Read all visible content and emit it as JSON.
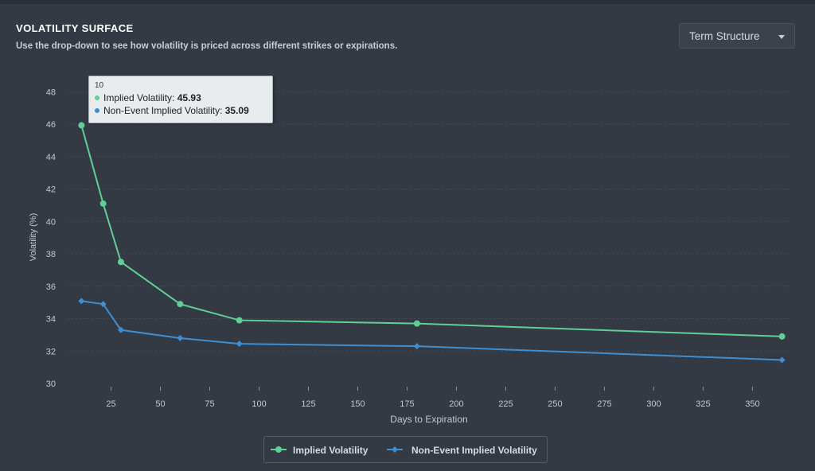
{
  "header": {
    "title": "VOLATILITY SURFACE",
    "subtitle": "Use the drop-down to see how volatility is priced across different strikes or expirations."
  },
  "dropdown": {
    "selected": "Term Structure"
  },
  "colors": {
    "iv": "#5fcf96",
    "nonevent": "#3f8ed1",
    "background": "#343a43"
  },
  "tooltip": {
    "x": "10",
    "rows": [
      {
        "label": "Implied Volatility:",
        "value": "45.93"
      },
      {
        "label": "Non-Event Implied Volatility:",
        "value": "35.09"
      }
    ]
  },
  "chart_data": {
    "type": "line",
    "xlabel": "Days to Expiration",
    "ylabel": "Volatility (%)",
    "xlim": [
      3,
      370
    ],
    "ylim": [
      30,
      49
    ],
    "xticks": [
      25,
      50,
      75,
      100,
      125,
      150,
      175,
      200,
      225,
      250,
      275,
      300,
      325,
      350
    ],
    "yticks": [
      30,
      32,
      34,
      36,
      38,
      40,
      42,
      44,
      46,
      48
    ],
    "grid": true,
    "legend": "bottom-center",
    "series": [
      {
        "name": "Implied Volatility",
        "marker": "circle",
        "points": [
          [
            10,
            45.93
          ],
          [
            21,
            41.1
          ],
          [
            30,
            37.5
          ],
          [
            60,
            34.9
          ],
          [
            90,
            33.9
          ],
          [
            180,
            33.7
          ],
          [
            365,
            32.9
          ]
        ]
      },
      {
        "name": "Non-Event Implied Volatility",
        "marker": "diamond",
        "points": [
          [
            10,
            35.09
          ],
          [
            21,
            34.9
          ],
          [
            30,
            33.3
          ],
          [
            60,
            32.8
          ],
          [
            90,
            32.45
          ],
          [
            180,
            32.3
          ],
          [
            365,
            31.45
          ]
        ]
      }
    ]
  }
}
